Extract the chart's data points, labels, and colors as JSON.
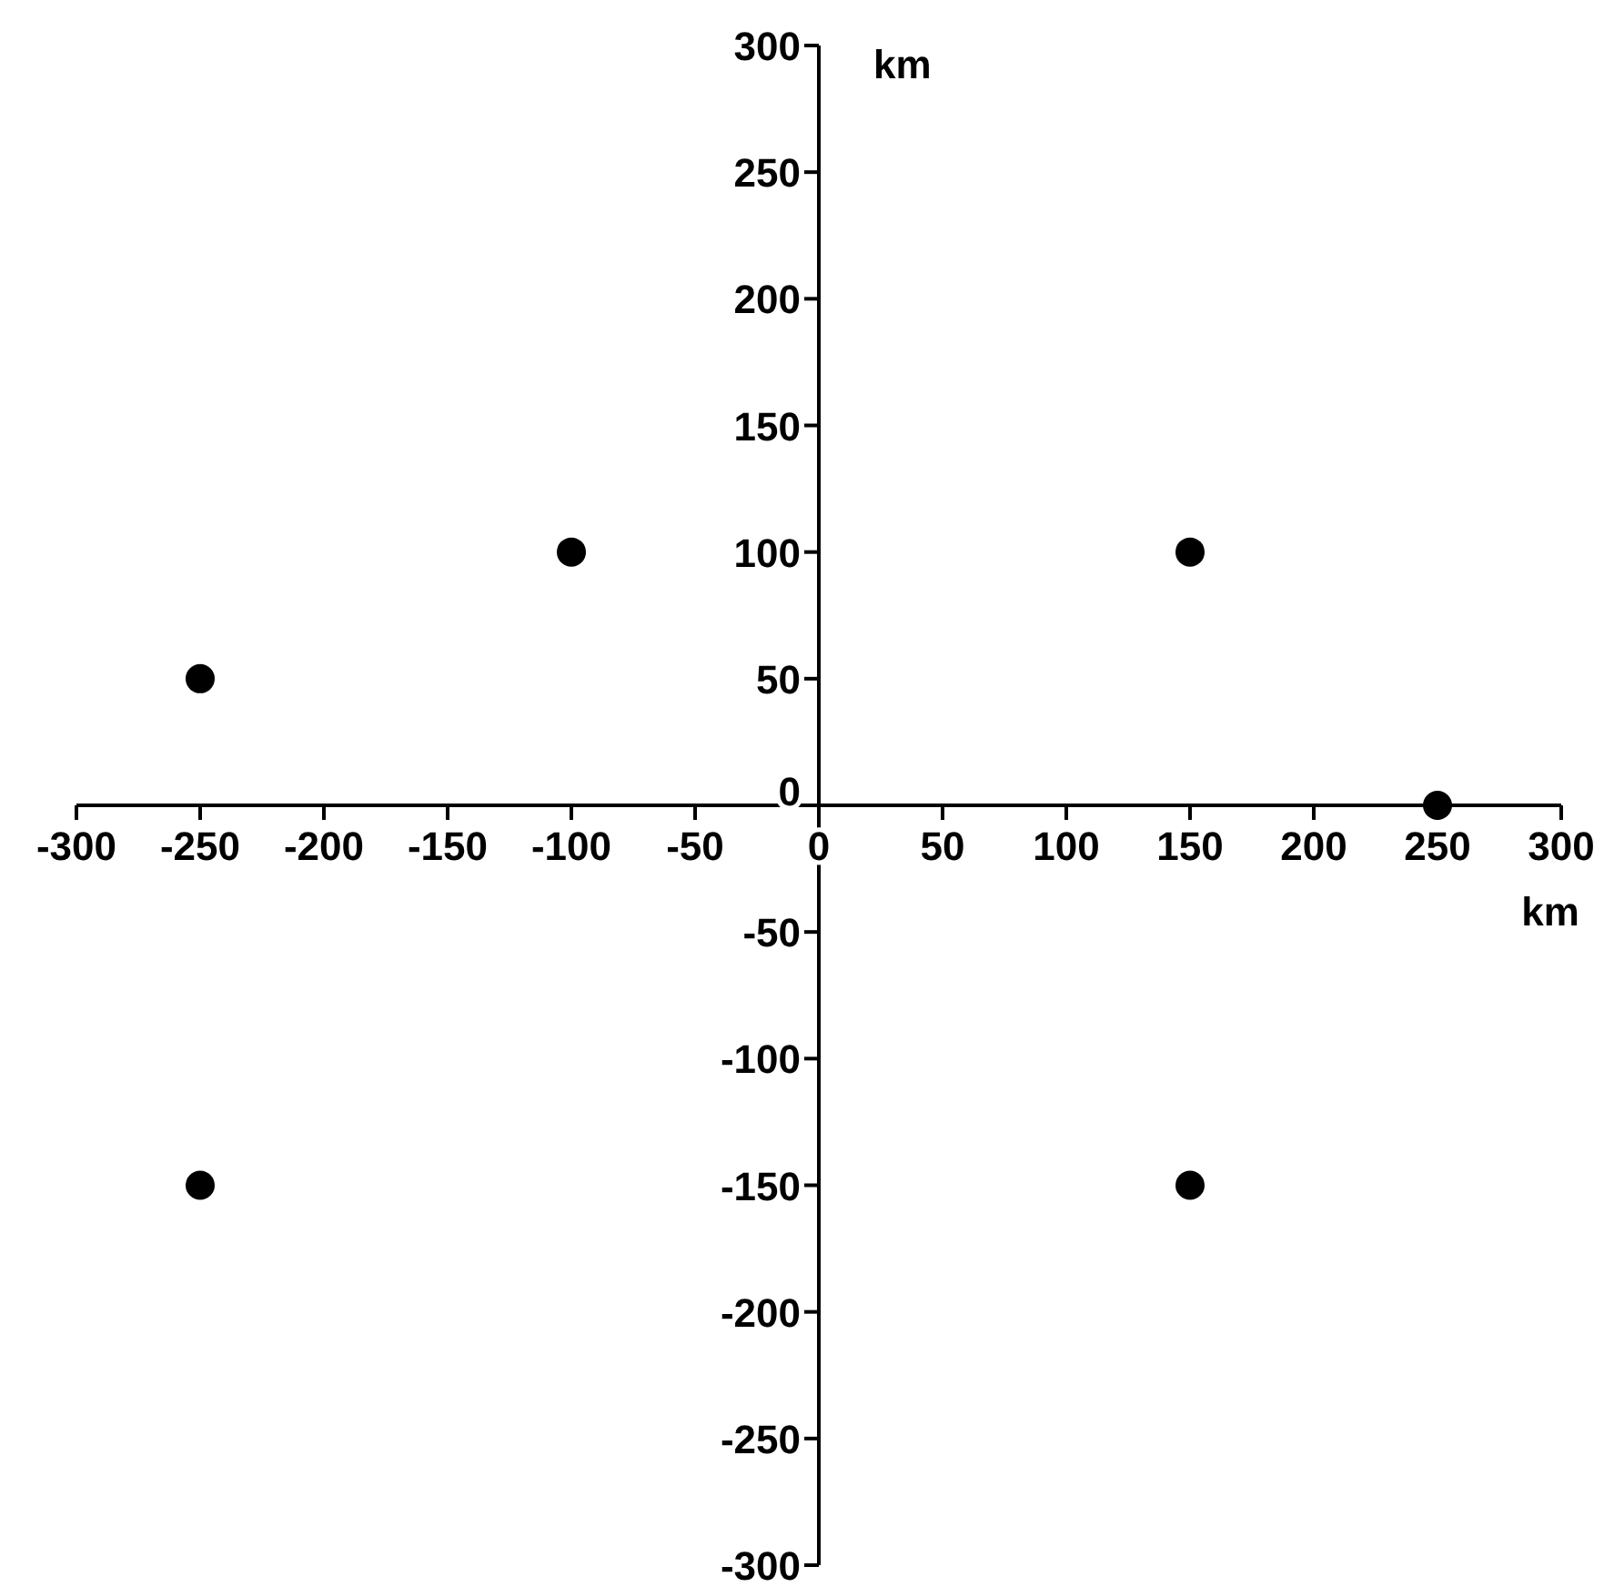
{
  "chart_data": {
    "type": "scatter",
    "xlabel": "km",
    "ylabel": "km",
    "x": [
      -250,
      -100,
      150,
      250,
      -250,
      150
    ],
    "series": [
      {
        "color": "#000000",
        "values": [
          50,
          100,
          100,
          0,
          -150,
          -150
        ]
      }
    ],
    "xlim": [
      -300,
      300
    ],
    "ylim": [
      -300,
      300
    ],
    "xticks": [
      -300,
      -250,
      -200,
      -150,
      -100,
      -50,
      0,
      50,
      100,
      150,
      200,
      250,
      300
    ],
    "yticks": [
      -300,
      -250,
      -200,
      -150,
      -100,
      -50,
      0,
      50,
      100,
      150,
      200,
      250,
      300
    ],
    "grid": false,
    "legend": false,
    "marker": "circle"
  }
}
